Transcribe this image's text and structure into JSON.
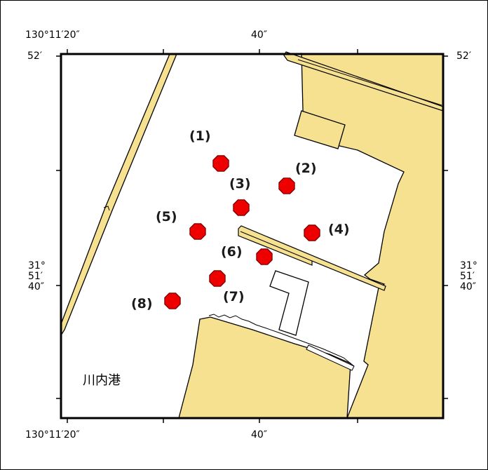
{
  "colors": {
    "land": "#f6e190",
    "water": "#ffffff",
    "outline": "#000000",
    "marker_fill": "#ee0000",
    "marker_stroke": "#7a0000"
  },
  "axes": {
    "top_lon_left": "130°11′20″",
    "top_lon_mid": "40″",
    "bottom_lon_left": "130°11′20″",
    "bottom_lon_mid": "40″",
    "left_lat_top": "52′",
    "right_lat_top": "52′",
    "left_lat_mid": "31°\n51′\n40″",
    "right_lat_mid": "31°\n51′\n40″"
  },
  "place_name": "川内港",
  "stations": [
    {
      "label": "(1)",
      "icon": "octagon-marker"
    },
    {
      "label": "(2)",
      "icon": "octagon-marker"
    },
    {
      "label": "(3)",
      "icon": "octagon-marker"
    },
    {
      "label": "(4)",
      "icon": "octagon-marker"
    },
    {
      "label": "(5)",
      "icon": "octagon-marker"
    },
    {
      "label": "(6)",
      "icon": "octagon-marker"
    },
    {
      "label": "(7)",
      "icon": "octagon-marker"
    },
    {
      "label": "(8)",
      "icon": "octagon-marker"
    }
  ]
}
